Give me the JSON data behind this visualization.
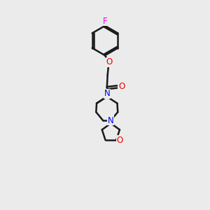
{
  "background_color": "#ebebeb",
  "bond_color": "#1a1a1a",
  "N_color": "#0000ee",
  "O_color": "#ee0000",
  "F_color": "#ee00ee",
  "line_width": 1.8,
  "figsize": [
    3.0,
    3.0
  ],
  "dpi": 100,
  "xlim": [
    0,
    10
  ],
  "ylim": [
    0,
    16
  ]
}
